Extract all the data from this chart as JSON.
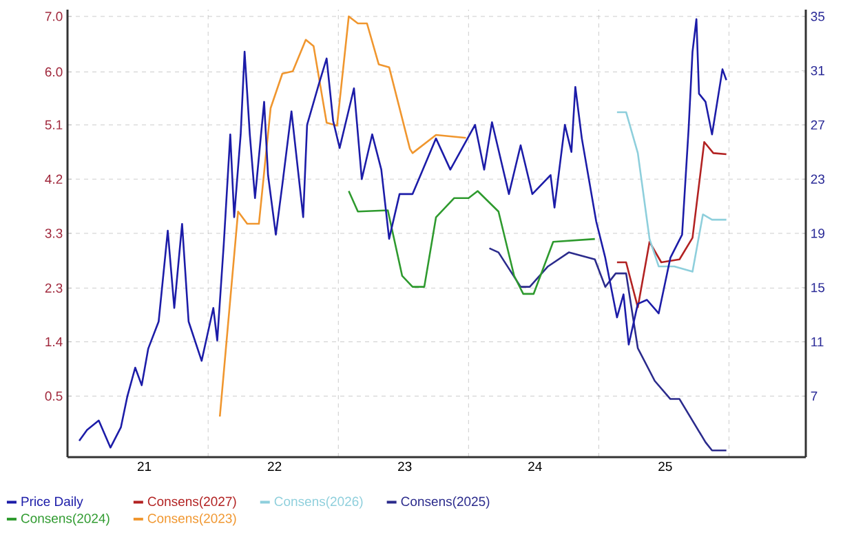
{
  "chart_data": {
    "type": "line",
    "xlim": [
      2020.41,
      2026.08
    ],
    "xticks": [
      {
        "value": 2021,
        "label": "21"
      },
      {
        "value": 2022,
        "label": "22"
      },
      {
        "value": 2023,
        "label": "23"
      },
      {
        "value": 2024,
        "label": "24"
      },
      {
        "value": 2025,
        "label": "25"
      },
      {
        "value": 2021.49,
        "label": null
      },
      {
        "value": 2022.49,
        "label": null
      },
      {
        "value": 2023.49,
        "label": null
      },
      {
        "value": 2024.49,
        "label": null
      },
      {
        "value": 2025.49,
        "label": null
      }
    ],
    "ylim": [
      -0.545,
      7.116
    ],
    "yticks": [
      {
        "value": 0.5,
        "label": "0.5"
      },
      {
        "value": 1.429,
        "label": "1.4"
      },
      {
        "value": 2.349,
        "label": "2.3"
      },
      {
        "value": 3.286,
        "label": "3.3"
      },
      {
        "value": 4.214,
        "label": "4.2"
      },
      {
        "value": 5.143,
        "label": "5.1"
      },
      {
        "value": 6.049,
        "label": "6.0"
      },
      {
        "value": 7.0,
        "label": "7.0"
      }
    ],
    "y2lim": [
      2.5,
      35.5
    ],
    "y2ticks": [
      7,
      11,
      15,
      19,
      23,
      27,
      31,
      35
    ],
    "grid": true,
    "legend": "bottom left",
    "series": [
      {
        "name": "Price Daily",
        "color": "#1c1ca8",
        "axis": "y2",
        "x": [
          2020.5,
          2020.56,
          2020.65,
          2020.74,
          2020.82,
          2020.87,
          2020.93,
          2020.98,
          2021.03,
          2021.11,
          2021.18,
          2021.23,
          2021.29,
          2021.34,
          2021.44,
          2021.53,
          2021.56,
          2021.61,
          2021.66,
          2021.69,
          2021.74,
          2021.77,
          2021.81,
          2021.85,
          2021.92,
          2021.95,
          2022.01,
          2022.06,
          2022.13,
          2022.22,
          2022.25,
          2022.34,
          2022.4,
          2022.45,
          2022.5,
          2022.61,
          2022.67,
          2022.75,
          2022.82,
          2022.88,
          2022.96,
          2023.06,
          2023.24,
          2023.35,
          2023.54,
          2023.61,
          2023.67,
          2023.8,
          2023.89,
          2023.98,
          2024.12,
          2024.15,
          2024.23,
          2024.28,
          2024.31,
          2024.36,
          2024.47,
          2024.54,
          2024.63,
          2024.68,
          2024.72,
          2024.79,
          2024.86,
          2024.95,
          2025.04,
          2025.13,
          2025.18,
          2025.21,
          2025.24,
          2025.26,
          2025.31,
          2025.36,
          2025.41,
          2025.44,
          2025.47
        ],
        "values": [
          3.7,
          4.5,
          5.2,
          3.2,
          4.7,
          7.0,
          9.1,
          7.8,
          10.5,
          12.5,
          19.2,
          13.5,
          19.7,
          12.5,
          9.6,
          13.5,
          11.1,
          18.2,
          26.3,
          20.2,
          26.3,
          32.4,
          26.3,
          21.6,
          28.7,
          23.3,
          18.9,
          22.6,
          28.0,
          20.2,
          27.0,
          30.0,
          31.9,
          27.3,
          25.3,
          29.7,
          23.0,
          26.3,
          23.7,
          18.6,
          21.9,
          21.9,
          26.0,
          23.7,
          27.0,
          23.7,
          27.2,
          21.9,
          25.5,
          21.9,
          23.3,
          20.9,
          27.0,
          25.0,
          29.8,
          26.0,
          19.9,
          17.2,
          12.8,
          14.5,
          10.8,
          13.8,
          14.1,
          13.1,
          17.2,
          18.9,
          26.7,
          32.4,
          34.8,
          29.3,
          28.7,
          26.3,
          29.3,
          31.1,
          30.3
        ]
      },
      {
        "name": "Consens(2027)",
        "color": "#b22222",
        "x": [
          2024.63,
          2024.7,
          2024.79,
          2024.88,
          2024.97,
          2025.11,
          2025.21,
          2025.3,
          2025.37,
          2025.47
        ],
        "values": [
          2.79,
          2.79,
          2.02,
          3.14,
          2.79,
          2.84,
          3.21,
          4.85,
          4.66,
          4.64
        ]
      },
      {
        "name": "Consens(2026)",
        "color": "#8ecfdc",
        "x": [
          2024.63,
          2024.7,
          2024.79,
          2024.88,
          2024.95,
          2025.07,
          2025.21,
          2025.29,
          2025.36,
          2025.47
        ],
        "values": [
          5.36,
          5.36,
          4.66,
          3.19,
          2.72,
          2.72,
          2.63,
          3.61,
          3.52,
          3.52
        ]
      },
      {
        "name": "Consens(2025)",
        "color": "#2b2b8c",
        "x": [
          2023.65,
          2023.72,
          2023.89,
          2023.96,
          2024.1,
          2024.26,
          2024.46,
          2024.54,
          2024.62,
          2024.7,
          2024.79,
          2024.92,
          2025.04,
          2025.11,
          2025.31,
          2025.36,
          2025.47
        ],
        "values": [
          3.03,
          2.96,
          2.37,
          2.37,
          2.72,
          2.96,
          2.84,
          2.37,
          2.6,
          2.6,
          1.32,
          0.76,
          0.45,
          0.45,
          -0.29,
          -0.43,
          -0.43
        ]
      },
      {
        "name": "Consens(2024)",
        "color": "#2e9a2e",
        "x": [
          2022.57,
          2022.64,
          2022.87,
          2022.98,
          2023.06,
          2023.15,
          2023.24,
          2023.38,
          2023.49,
          2023.56,
          2023.72,
          2023.84,
          2023.91,
          2023.99,
          2024.14,
          2024.46
        ],
        "values": [
          4.01,
          3.66,
          3.68,
          2.56,
          2.37,
          2.37,
          3.56,
          3.89,
          3.89,
          4.01,
          3.66,
          2.56,
          2.25,
          2.25,
          3.14,
          3.19
        ]
      },
      {
        "name": "Consens(2023)",
        "color": "#f0962e",
        "x": [
          2021.58,
          2021.72,
          2021.79,
          2021.88,
          2021.97,
          2022.06,
          2022.14,
          2022.24,
          2022.3,
          2022.4,
          2022.48,
          2022.57,
          2022.64,
          2022.71,
          2022.8,
          2022.88,
          2023.04,
          2023.06,
          2023.24,
          2023.47
        ],
        "values": [
          0.15,
          3.66,
          3.45,
          3.45,
          5.43,
          6.02,
          6.06,
          6.6,
          6.49,
          5.18,
          5.13,
          7.0,
          6.88,
          6.88,
          6.18,
          6.13,
          4.73,
          4.66,
          4.97,
          4.92
        ]
      }
    ]
  }
}
